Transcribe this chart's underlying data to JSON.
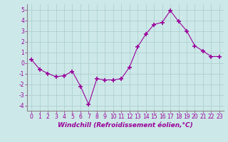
{
  "x": [
    0,
    1,
    2,
    3,
    4,
    5,
    6,
    7,
    8,
    9,
    10,
    11,
    12,
    13,
    14,
    15,
    16,
    17,
    18,
    19,
    20,
    21,
    22,
    23
  ],
  "y": [
    0.3,
    -0.6,
    -1.0,
    -1.3,
    -1.2,
    -0.8,
    -2.2,
    -3.9,
    -1.5,
    -1.6,
    -1.6,
    -1.5,
    -0.4,
    1.5,
    2.7,
    3.6,
    3.8,
    4.9,
    3.9,
    3.0,
    1.6,
    1.1,
    0.6,
    0.6
  ],
  "line_color": "#990099",
  "marker": "+",
  "marker_size": 4,
  "bg_color": "#cce8e8",
  "grid_color": "#aacccc",
  "xlabel": "Windchill (Refroidissement éolien,°C)",
  "xlim": [
    -0.5,
    23.5
  ],
  "ylim": [
    -4.5,
    5.5
  ],
  "yticks": [
    -4,
    -3,
    -2,
    -1,
    0,
    1,
    2,
    3,
    4,
    5
  ],
  "xticks": [
    0,
    1,
    2,
    3,
    4,
    5,
    6,
    7,
    8,
    9,
    10,
    11,
    12,
    13,
    14,
    15,
    16,
    17,
    18,
    19,
    20,
    21,
    22,
    23
  ],
  "tick_font_size": 5.5,
  "xlabel_font_size": 6.5,
  "marker_linewidth": 1.2
}
